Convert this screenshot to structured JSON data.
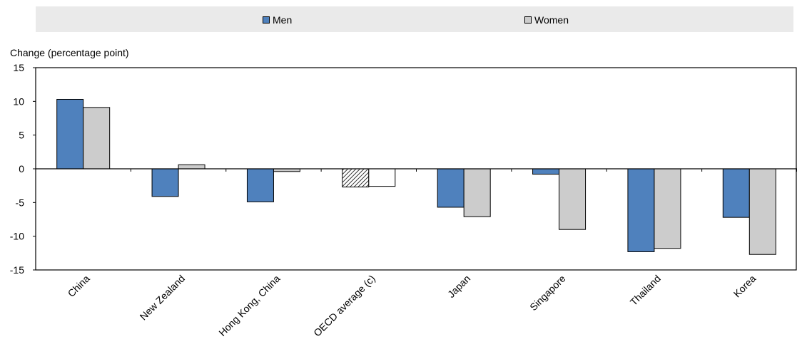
{
  "chart_data": {
    "type": "bar",
    "title": "",
    "xlabel": "",
    "ylabel": "Change (percentage point)",
    "ylim": [
      -15,
      15
    ],
    "yticks": [
      15,
      10,
      5,
      0,
      -5,
      -10,
      -15
    ],
    "categories": [
      "China",
      "New Zealand",
      "Hong Kong, China",
      "OECD average (c)",
      "Japan",
      "Singapore",
      "Thailand",
      "Korea"
    ],
    "series": [
      {
        "name": "Men",
        "values": [
          10.3,
          -4.1,
          -4.9,
          -2.7,
          -5.7,
          -0.8,
          -12.3,
          -7.2
        ]
      },
      {
        "name": "Women",
        "values": [
          9.1,
          0.6,
          -0.4,
          -2.6,
          -7.1,
          -9.0,
          -11.8,
          -12.7
        ]
      }
    ],
    "legend_position": "top",
    "grid": false,
    "colors": {
      "men": "#4f81bd",
      "women": "#cccccc",
      "legend_band": "#eaeaea",
      "axis": "#000000"
    },
    "highlight_category": "OECD average (c)",
    "highlight_style": {
      "men": "hatched",
      "women": "white"
    }
  }
}
